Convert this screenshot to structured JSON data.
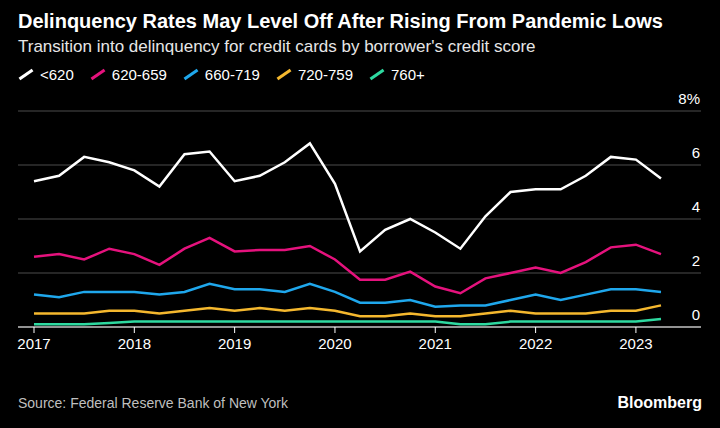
{
  "chart_data": {
    "type": "line",
    "title": "Delinquency Rates May Level Off After Rising From Pandemic Lows",
    "subtitle": "Transition into delinquency for credit cards by borrower's credit score",
    "source": "Source: Federal Reserve Bank of New York",
    "brand": "Bloomberg",
    "categories": [
      "2017",
      null,
      null,
      null,
      "2018",
      null,
      null,
      null,
      "2019",
      null,
      null,
      null,
      "2020",
      null,
      null,
      null,
      "2021",
      null,
      null,
      null,
      "2022",
      null,
      null,
      null,
      "2023",
      null
    ],
    "series": [
      {
        "name": "<620",
        "color": "#ffffff",
        "values": [
          5.4,
          5.6,
          6.3,
          6.1,
          5.8,
          5.2,
          6.4,
          6.5,
          5.4,
          5.6,
          6.1,
          6.8,
          5.3,
          2.8,
          3.6,
          4.0,
          3.5,
          2.9,
          4.1,
          5.0,
          5.1,
          5.1,
          5.6,
          6.3,
          6.2,
          5.5
        ]
      },
      {
        "name": "620-659",
        "color": "#e5127d",
        "values": [
          2.6,
          2.7,
          2.5,
          2.9,
          2.7,
          2.3,
          2.9,
          3.3,
          2.8,
          2.85,
          2.85,
          3.0,
          2.5,
          1.75,
          1.75,
          2.05,
          1.5,
          1.25,
          1.8,
          2.0,
          2.2,
          2.0,
          2.4,
          2.95,
          3.05,
          2.7
        ]
      },
      {
        "name": "660-719",
        "color": "#1fa7ec",
        "values": [
          1.2,
          1.1,
          1.3,
          1.3,
          1.3,
          1.2,
          1.3,
          1.6,
          1.4,
          1.4,
          1.3,
          1.6,
          1.3,
          0.9,
          0.9,
          1.0,
          0.75,
          0.8,
          0.8,
          1.0,
          1.2,
          1.0,
          1.2,
          1.4,
          1.4,
          1.3
        ]
      },
      {
        "name": "720-759",
        "color": "#f5b82e",
        "values": [
          0.5,
          0.5,
          0.5,
          0.6,
          0.6,
          0.5,
          0.6,
          0.7,
          0.6,
          0.7,
          0.6,
          0.7,
          0.6,
          0.4,
          0.4,
          0.5,
          0.4,
          0.4,
          0.5,
          0.6,
          0.5,
          0.5,
          0.5,
          0.6,
          0.6,
          0.8
        ]
      },
      {
        "name": "760+",
        "color": "#2ed9a0",
        "values": [
          0.1,
          0.1,
          0.1,
          0.15,
          0.2,
          0.2,
          0.2,
          0.2,
          0.2,
          0.2,
          0.2,
          0.2,
          0.2,
          0.2,
          0.2,
          0.2,
          0.2,
          0.1,
          0.1,
          0.2,
          0.2,
          0.2,
          0.2,
          0.2,
          0.2,
          0.3
        ]
      }
    ],
    "ylim": [
      0,
      8
    ],
    "yticks": [
      0,
      2,
      4,
      6,
      {
        "value": 8,
        "label": "8%"
      }
    ],
    "grid": true,
    "legend": "top"
  }
}
